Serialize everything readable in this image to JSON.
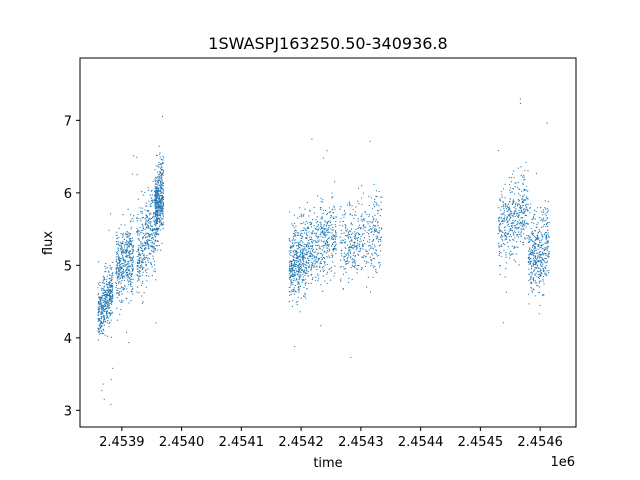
{
  "chart_data": {
    "type": "scatter",
    "title": "1SWASPJ163250.50-340936.8",
    "xlabel": "time",
    "ylabel": "flux",
    "x_offset_label": "1e6",
    "xlim": [
      2.45383,
      2.45466
    ],
    "ylim": [
      2.77,
      7.86
    ],
    "x_ticks": [
      2.4539,
      2.454,
      2.4541,
      2.4542,
      2.4543,
      2.4544,
      2.4545,
      2.4546
    ],
    "x_tick_labels": [
      "2.4539",
      "2.4540",
      "2.4541",
      "2.4542",
      "2.4543",
      "2.4544",
      "2.4545",
      "2.4546"
    ],
    "y_ticks": [
      3,
      4,
      5,
      6,
      7
    ],
    "y_tick_labels": [
      "3",
      "4",
      "5",
      "6",
      "7"
    ],
    "grid": false,
    "legend": "none",
    "color": "#1f77b4",
    "series": [
      {
        "segments": [
          {
            "x": [
              2.45386,
              2.453885
            ],
            "center": [
              4.3,
              4.7
            ],
            "spread": 0.35
          },
          {
            "x": [
              2.45389,
              2.45392
            ],
            "center": [
              4.95,
              5.15
            ],
            "spread": 0.5
          },
          {
            "x": [
              2.453925,
              2.45396
            ],
            "center": [
              5.1,
              5.7
            ],
            "spread": 0.55
          },
          {
            "x": [
              2.453955,
              2.45397
            ],
            "center": [
              5.8,
              6.0
            ],
            "spread": 0.45
          },
          {
            "x": [
              2.45418,
              2.45421
            ],
            "center": [
              5.0,
              5.15
            ],
            "spread": 0.45
          },
          {
            "x": [
              2.45421,
              2.45426
            ],
            "center": [
              5.2,
              5.45
            ],
            "spread": 0.5
          },
          {
            "x": [
              2.454265,
              2.454335
            ],
            "center": [
              5.25,
              5.5
            ],
            "spread": 0.5
          },
          {
            "x": [
              2.45453,
              2.45458
            ],
            "center": [
              5.5,
              5.8
            ],
            "spread": 0.5
          },
          {
            "x": [
              2.45458,
              2.454615
            ],
            "center": [
              5.1,
              5.3
            ],
            "spread": 0.5
          }
        ]
      }
    ]
  }
}
